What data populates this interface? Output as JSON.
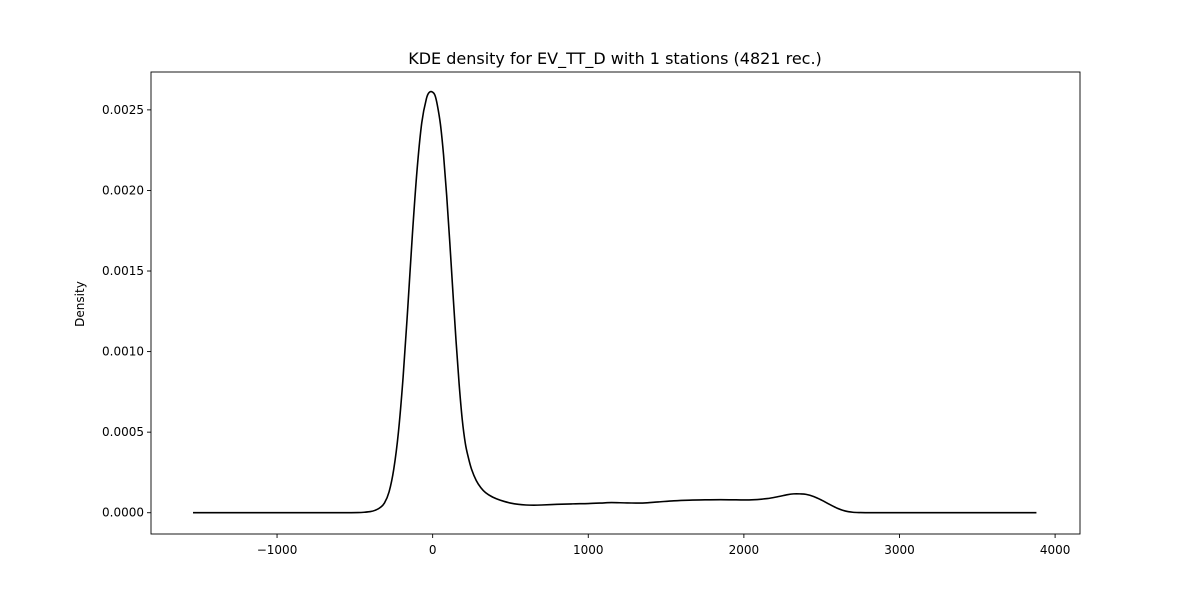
{
  "chart_data": {
    "type": "line",
    "title": "KDE density for EV_TT_D with 1 stations (4821 rec.)",
    "xlabel": "",
    "ylabel": "Density",
    "xlim": [
      -1810,
      4160
    ],
    "ylim": [
      -0.000132,
      0.002735
    ],
    "x_ticks": [
      -1000,
      0,
      1000,
      2000,
      3000,
      4000
    ],
    "x_tick_labels": [
      "−1000",
      "0",
      "1000",
      "2000",
      "3000",
      "4000"
    ],
    "y_ticks": [
      0.0,
      0.0005,
      0.001,
      0.0015,
      0.002,
      0.0025
    ],
    "y_tick_labels": [
      "0.0000",
      "0.0005",
      "0.0010",
      "0.0015",
      "0.0020",
      "0.0025"
    ],
    "grid": false,
    "line_color": "#000000",
    "series": [
      {
        "x": [
          -1540,
          -1200,
          -900,
          -700,
          -550,
          -480,
          -440,
          -400,
          -370,
          -340,
          -310,
          -280,
          -250,
          -220,
          -190,
          -160,
          -130,
          -100,
          -70,
          -40,
          -20,
          0,
          15,
          30,
          50,
          70,
          90,
          110,
          130,
          150,
          170,
          190,
          210,
          230,
          250,
          280,
          310,
          340,
          380,
          420,
          460,
          500,
          550,
          600,
          650,
          700,
          800,
          900,
          1000,
          1100,
          1150,
          1250,
          1350,
          1450,
          1550,
          1650,
          1750,
          1850,
          1950,
          2050,
          2150,
          2220,
          2280,
          2320,
          2360,
          2400,
          2450,
          2500,
          2550,
          2600,
          2650,
          2700,
          2750,
          2800,
          2900,
          3100,
          3400,
          3700,
          3880
        ],
        "y": [
          0.0,
          0.0,
          0.0,
          0.0,
          3e-07,
          1e-06,
          3e-06,
          7e-06,
          1.5e-05,
          3e-05,
          6e-05,
          0.00013,
          0.00027,
          0.0005,
          0.00084,
          0.00127,
          0.00173,
          0.00213,
          0.00242,
          0.00257,
          0.00261,
          0.00261,
          0.00259,
          0.00253,
          0.00241,
          0.00222,
          0.00197,
          0.00168,
          0.00137,
          0.00107,
          0.0008,
          0.00058,
          0.00043,
          0.00034,
          0.00027,
          0.0002,
          0.000155,
          0.000125,
          0.0001,
          8.3e-05,
          7e-05,
          6e-05,
          5.2e-05,
          4.8e-05,
          4.7e-05,
          4.8e-05,
          5.2e-05,
          5.5e-05,
          5.7e-05,
          6.1e-05,
          6.3e-05,
          6.1e-05,
          6e-05,
          6.7e-05,
          7.4e-05,
          7.8e-05,
          8e-05,
          8.1e-05,
          8e-05,
          8e-05,
          8.8e-05,
          0.0001,
          0.000112,
          0.000117,
          0.000117,
          0.000114,
          0.0001,
          7.8e-05,
          5.2e-05,
          2.8e-05,
          1.1e-05,
          3e-06,
          8e-07,
          2e-07,
          0.0,
          0.0,
          0.0,
          0.0,
          0.0
        ]
      }
    ]
  }
}
